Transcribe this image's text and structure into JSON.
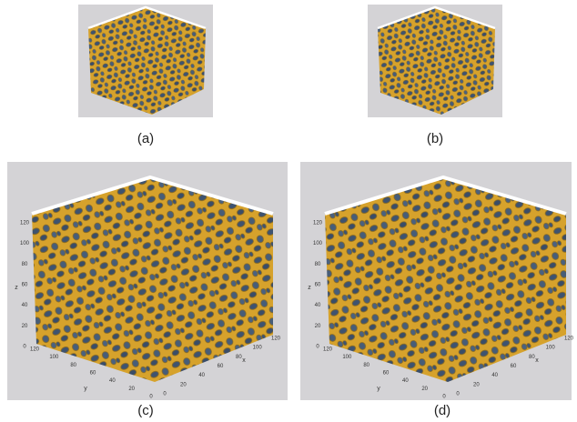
{
  "panels": [
    {
      "label": "(a)"
    },
    {
      "label": "(b)"
    },
    {
      "label": "(c)",
      "z_label": "z",
      "z_ticks": [
        0,
        20,
        40,
        60,
        80,
        100,
        120
      ],
      "y_label": "y",
      "y_ticks": [
        120,
        100,
        80,
        60,
        40,
        20,
        0
      ],
      "x_label": "x",
      "x_ticks": [
        0,
        20,
        40,
        60,
        80,
        100,
        120
      ]
    },
    {
      "label": "(d)",
      "z_label": "z",
      "z_ticks": [
        0,
        20,
        40,
        60,
        80,
        100,
        120
      ],
      "y_label": "y",
      "y_ticks": [
        120,
        100,
        80,
        60,
        40,
        20,
        0
      ],
      "x_label": "x",
      "x_ticks": [
        0,
        20,
        40,
        60,
        80,
        100,
        120
      ]
    }
  ]
}
